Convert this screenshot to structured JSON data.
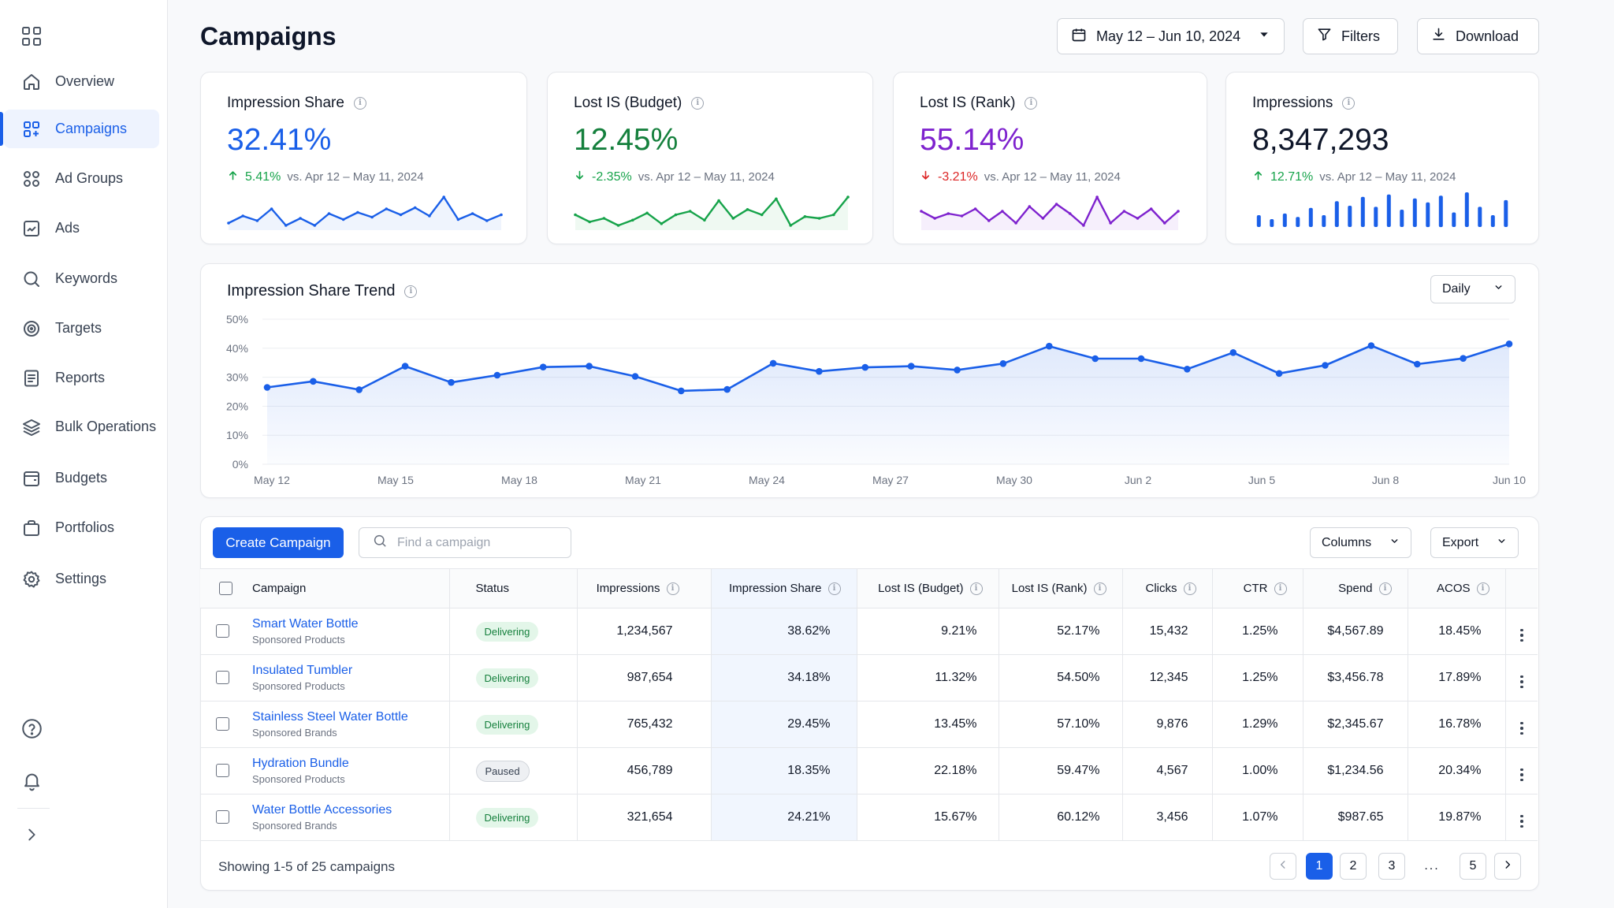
{
  "sidebar": {
    "items": [
      {
        "label": "Overview",
        "icon": "home-icon"
      },
      {
        "label": "Campaigns",
        "icon": "campaigns-icon",
        "active": true
      },
      {
        "label": "Ad Groups",
        "icon": "ad-groups-icon"
      },
      {
        "label": "Ads",
        "icon": "ads-icon"
      },
      {
        "label": "Keywords",
        "icon": "search-icon"
      },
      {
        "label": "Targets",
        "icon": "target-icon"
      },
      {
        "label": "Reports",
        "icon": "report-icon"
      },
      {
        "label": "Bulk Operations",
        "icon": "layers-icon"
      },
      {
        "label": "Budgets",
        "icon": "budget-icon"
      },
      {
        "label": "Portfolios",
        "icon": "briefcase-icon"
      },
      {
        "label": "Settings",
        "icon": "gear-icon"
      }
    ]
  },
  "header": {
    "title": "Campaigns",
    "date_range": "May 12 – Jun 10, 2024",
    "filters_label": "Filters",
    "download_label": "Download"
  },
  "kpis": [
    {
      "title": "Impression Share",
      "value": "32.41%",
      "delta": "5.41%",
      "direction": "up",
      "comparison": "vs. Apr 12 – May 11, 2024",
      "value_color": "#1a5fe8",
      "delta_color": "#16a34a",
      "spark_color": "#1a5fe8",
      "spark_type": "line",
      "spark": [
        22,
        28,
        24,
        34,
        20,
        26,
        20,
        30,
        25,
        31,
        27,
        34,
        29,
        35,
        28,
        44,
        25,
        30,
        24,
        29
      ]
    },
    {
      "title": "Lost IS (Budget)",
      "value": "12.45%",
      "delta": "-2.35%",
      "direction": "down",
      "comparison": "vs. Apr 12 – May 11, 2024",
      "value_color": "#15803d",
      "delta_color": "#16a34a",
      "spark_color": "#16a34a",
      "spark_type": "line",
      "spark": [
        26,
        22,
        24,
        20,
        23,
        27,
        21,
        26,
        28,
        23,
        34,
        24,
        29,
        26,
        35,
        20,
        25,
        24,
        26,
        36
      ]
    },
    {
      "title": "Lost IS (Rank)",
      "value": "55.14%",
      "delta": "-3.21%",
      "direction": "down",
      "comparison": "vs. Apr 12 – May 11, 2024",
      "value_color": "#7e22ce",
      "delta_color": "#dc2626",
      "spark_color": "#7e22ce",
      "spark_type": "line",
      "spark": [
        27,
        24,
        26,
        25,
        28,
        23,
        27,
        22,
        29,
        24,
        30,
        26,
        21,
        33,
        22,
        27,
        24,
        28,
        22,
        27
      ]
    },
    {
      "title": "Impressions",
      "value": "8,347,293",
      "delta": "12.71%",
      "direction": "up",
      "comparison": "vs. Apr 12 – May 11, 2024",
      "value_color": "#0f172a",
      "delta_color": "#16a34a",
      "spark_color": "#1a5fe8",
      "spark_type": "bar",
      "spark": [
        55,
        48,
        58,
        52,
        68,
        55,
        80,
        72,
        88,
        70,
        92,
        65,
        85,
        78,
        90,
        60,
        96,
        70,
        55,
        82
      ]
    }
  ],
  "trend": {
    "title": "Impression Share Trend",
    "interval": "Daily"
  },
  "chart_data": {
    "type": "area",
    "title": "Impression Share Trend",
    "xlabel": "",
    "ylabel": "",
    "ylim": [
      0,
      50
    ],
    "y_ticks": [
      "0%",
      "10%",
      "20%",
      "30%",
      "40%",
      "50%"
    ],
    "x_ticks": [
      "May 12",
      "May 15",
      "May 18",
      "May 21",
      "May 24",
      "May 27",
      "May 30",
      "Jun 2",
      "Jun 5",
      "Jun 8",
      "Jun 10"
    ],
    "grid": true,
    "series": [
      {
        "values": [
          26.5,
          28.6,
          25.7,
          33.8,
          28.2,
          30.7,
          33.5,
          33.8,
          30.3,
          25.3,
          25.8,
          34.8,
          32.0,
          33.4,
          33.8,
          32.5,
          34.7,
          40.7,
          36.4,
          36.4,
          32.8,
          38.5,
          31.3,
          34.1,
          40.9,
          34.5,
          36.5,
          41.5
        ],
        "color": "#1a5fe8"
      }
    ]
  },
  "table": {
    "create_label": "Create Campaign",
    "search_placeholder": "Find a campaign",
    "columns_label": "Columns",
    "export_label": "Export",
    "headers": {
      "campaign": "Campaign",
      "status": "Status",
      "impressions": "Impressions",
      "impression_share": "Impression Share",
      "lost_budget": "Lost IS (Budget)",
      "lost_rank": "Lost IS (Rank)",
      "clicks": "Clicks",
      "ctr": "CTR",
      "spend": "Spend",
      "acos": "ACOS"
    },
    "rows": [
      {
        "name": "Smart Water Bottle",
        "type": "Sponsored Products",
        "status": "Delivering",
        "impressions": "1,234,567",
        "impression_share": "38.62%",
        "lost_budget": "9.21%",
        "lost_rank": "52.17%",
        "clicks": "15,432",
        "ctr": "1.25%",
        "spend": "$4,567.89",
        "acos": "18.45%"
      },
      {
        "name": "Insulated Tumbler",
        "type": "Sponsored Products",
        "status": "Delivering",
        "impressions": "987,654",
        "impression_share": "34.18%",
        "lost_budget": "11.32%",
        "lost_rank": "54.50%",
        "clicks": "12,345",
        "ctr": "1.25%",
        "spend": "$3,456.78",
        "acos": "17.89%"
      },
      {
        "name": "Stainless Steel Water Bottle",
        "type": "Sponsored Brands",
        "status": "Delivering",
        "impressions": "765,432",
        "impression_share": "29.45%",
        "lost_budget": "13.45%",
        "lost_rank": "57.10%",
        "clicks": "9,876",
        "ctr": "1.29%",
        "spend": "$2,345.67",
        "acos": "16.78%"
      },
      {
        "name": "Hydration Bundle",
        "type": "Sponsored Products",
        "status": "Paused",
        "impressions": "456,789",
        "impression_share": "18.35%",
        "lost_budget": "22.18%",
        "lost_rank": "59.47%",
        "clicks": "4,567",
        "ctr": "1.00%",
        "spend": "$1,234.56",
        "acos": "20.34%"
      },
      {
        "name": "Water Bottle Accessories",
        "type": "Sponsored Brands",
        "status": "Delivering",
        "impressions": "321,654",
        "impression_share": "24.21%",
        "lost_budget": "15.67%",
        "lost_rank": "60.12%",
        "clicks": "3,456",
        "ctr": "1.07%",
        "spend": "$987.65",
        "acos": "19.87%"
      }
    ],
    "pagination": {
      "summary": "Showing 1-5 of 25 campaigns",
      "pages": [
        "1",
        "2",
        "3",
        "...",
        "5"
      ],
      "current": "1"
    }
  }
}
